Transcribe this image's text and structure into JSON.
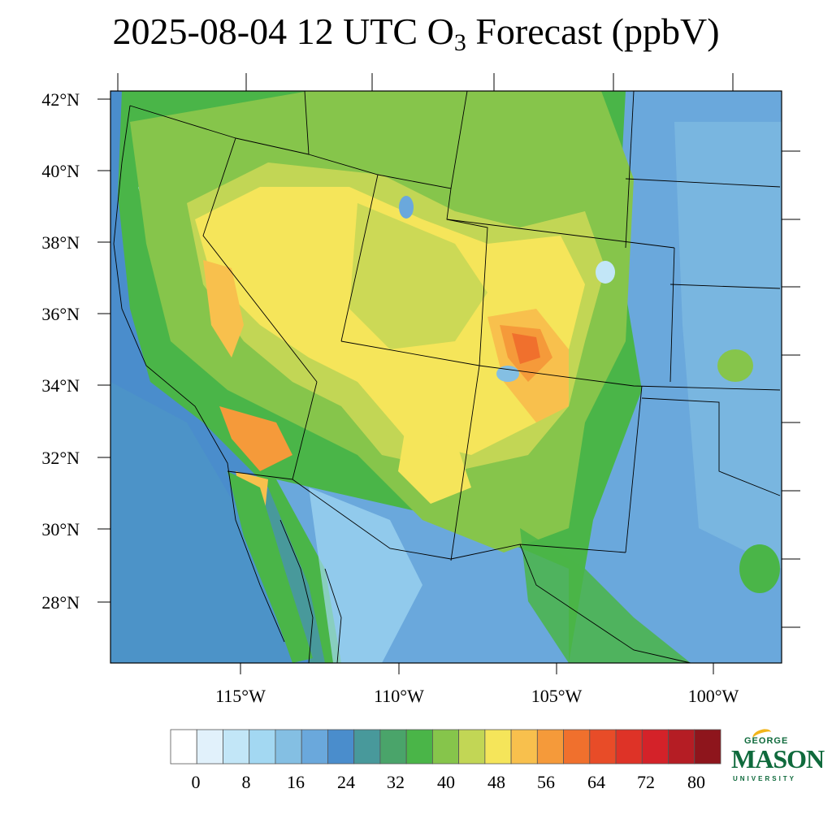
{
  "title": {
    "prefix": "2025-08-04 12 UTC O",
    "subscript": "3",
    "suffix": " Forecast (ppbV)"
  },
  "map": {
    "lat_labels": [
      "42°N",
      "40°N",
      "38°N",
      "36°N",
      "34°N",
      "32°N",
      "30°N",
      "28°N"
    ],
    "lon_labels": [
      "115°W",
      "110°W",
      "105°W",
      "100°W"
    ]
  },
  "colorbar": {
    "labels": [
      "0",
      "8",
      "16",
      "24",
      "32",
      "40",
      "48",
      "56",
      "64",
      "72",
      "80"
    ],
    "colors": [
      "#ffffff",
      "#e1f1fb",
      "#c2e6f7",
      "#a3d8f2",
      "#84bfe3",
      "#6aa8dc",
      "#4a8dcc",
      "#48999b",
      "#4aa46a",
      "#4ab548",
      "#86c54b",
      "#c2d655",
      "#f5e55a",
      "#f8c04d",
      "#f59a3a",
      "#f0702d",
      "#e84c28",
      "#de3327",
      "#d42229",
      "#b51d24",
      "#8e151c"
    ]
  },
  "logo": {
    "line1": "GEORGE",
    "line2": "MASON",
    "line3": "UNIVERSITY"
  }
}
